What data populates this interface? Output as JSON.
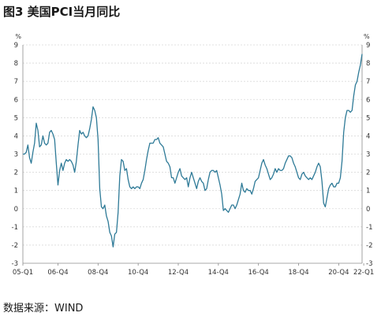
{
  "title": "图3 美国PCI当月同比",
  "source": "数据来源：WIND",
  "chart_data": {
    "type": "line",
    "unit_left": "%",
    "unit_right": "%",
    "ylim": [
      -3,
      9
    ],
    "yticks": [
      9,
      8,
      7,
      6,
      5,
      4,
      3,
      2,
      1,
      0,
      -1,
      -2,
      -3
    ],
    "grid": true,
    "x_tick_labels": [
      "05-Q1",
      "06-Q4",
      "08-Q4",
      "10-Q4",
      "12-Q4",
      "14-Q4",
      "16-Q4",
      "18-Q4",
      "20-Q4",
      "22-Q1"
    ],
    "x_tick_positions": [
      0,
      21,
      45,
      69,
      93,
      117,
      141,
      165,
      189,
      204
    ],
    "series": [
      {
        "color": "#2e7a97",
        "values": [
          3.0,
          3.0,
          3.1,
          3.5,
          2.8,
          2.5,
          3.1,
          3.6,
          4.7,
          4.3,
          3.4,
          3.5,
          4.0,
          3.6,
          3.5,
          3.6,
          4.2,
          4.3,
          4.1,
          3.8,
          2.5,
          1.3,
          2.1,
          2.5,
          2.1,
          2.5,
          2.7,
          2.6,
          2.7,
          2.6,
          2.4,
          2.0,
          2.6,
          3.5,
          4.3,
          4.1,
          4.2,
          4.0,
          3.9,
          4.0,
          4.4,
          4.9,
          5.6,
          5.4,
          5.0,
          3.8,
          1.1,
          0.1,
          0.0,
          0.2,
          -0.4,
          -0.7,
          -1.3,
          -1.5,
          -2.1,
          -1.4,
          -1.3,
          -0.2,
          1.8,
          2.7,
          2.6,
          2.1,
          2.2,
          1.6,
          1.2,
          1.1,
          1.2,
          1.1,
          1.2,
          1.2,
          1.1,
          1.4,
          1.6,
          2.1,
          2.7,
          3.2,
          3.6,
          3.6,
          3.6,
          3.8,
          3.8,
          3.9,
          3.6,
          3.5,
          3.4,
          3.0,
          2.6,
          2.5,
          2.3,
          1.7,
          1.7,
          1.4,
          1.7,
          2.0,
          2.2,
          1.8,
          1.7,
          1.6,
          1.7,
          1.2,
          1.7,
          2.0,
          1.7,
          1.4,
          1.1,
          1.5,
          1.7,
          1.5,
          1.4,
          1.0,
          1.1,
          1.6,
          2.0,
          2.1,
          2.1,
          2.0,
          2.1,
          1.7,
          1.3,
          0.8,
          -0.1,
          -0.0,
          -0.1,
          -0.2,
          -0.0,
          0.2,
          0.2,
          0.0,
          0.2,
          0.5,
          0.8,
          1.4,
          1.0,
          0.9,
          1.1,
          1.0,
          1.0,
          0.8,
          1.1,
          1.5,
          1.6,
          1.7,
          2.1,
          2.5,
          2.7,
          2.4,
          2.2,
          1.9,
          1.6,
          1.7,
          1.9,
          2.2,
          2.0,
          2.2,
          2.1,
          2.1,
          2.2,
          2.5,
          2.7,
          2.9,
          2.9,
          2.8,
          2.5,
          2.3,
          2.0,
          1.7,
          1.6,
          1.9,
          2.0,
          1.8,
          1.7,
          1.6,
          1.7,
          1.6,
          1.8,
          2.0,
          2.3,
          2.5,
          2.3,
          1.5,
          0.3,
          0.1,
          0.6,
          1.1,
          1.3,
          1.4,
          1.2,
          1.2,
          1.4,
          1.4,
          1.7,
          2.6,
          4.2,
          5.0,
          5.4,
          5.4,
          5.3,
          5.4,
          6.2,
          6.8,
          7.0,
          7.5,
          7.9,
          8.5
        ]
      }
    ]
  }
}
